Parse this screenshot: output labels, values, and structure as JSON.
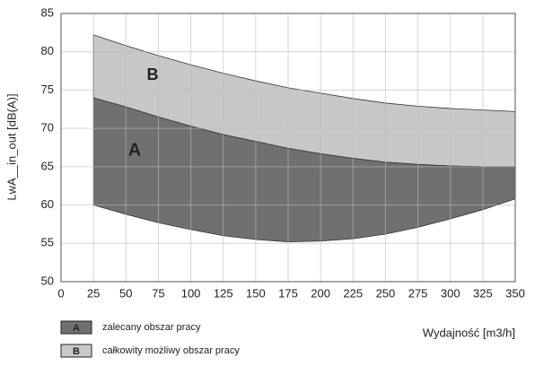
{
  "chart_data": {
    "type": "band",
    "y_label": "LwA__in_out [dB(A)]",
    "x_label": "Wydajność [m3/h]",
    "x": [
      25,
      50,
      75,
      100,
      125,
      150,
      175,
      200,
      225,
      250,
      275,
      300,
      325,
      350
    ],
    "series": [
      {
        "name": "zalecany obszar pracy",
        "label": "A",
        "color": "#707070",
        "lower": [
          60,
          58.8,
          57.7,
          56.8,
          56,
          55.5,
          55.2,
          55.3,
          55.6,
          56.2,
          57.1,
          58.2,
          59.4,
          60.8
        ],
        "upper": [
          74,
          72.8,
          71.5,
          70.3,
          69.2,
          68.3,
          67.4,
          66.7,
          66.1,
          65.6,
          65.3,
          65.1,
          65,
          65
        ]
      },
      {
        "name": "całkowity możliwy obszar pracy",
        "label": "B",
        "color": "#c8c8c8",
        "upper": [
          82.2,
          80.8,
          79.5,
          78.3,
          77.2,
          76.2,
          75.3,
          74.6,
          73.9,
          73.3,
          72.9,
          72.6,
          72.4,
          72.2
        ]
      }
    ],
    "xlim": [
      0,
      350
    ],
    "xticks": [
      0,
      25,
      50,
      75,
      100,
      125,
      150,
      175,
      200,
      225,
      250,
      275,
      300,
      325,
      350
    ],
    "ylim": [
      50,
      85
    ],
    "yticks": [
      50,
      55,
      60,
      65,
      70,
      75,
      80,
      85
    ],
    "grid": true
  }
}
